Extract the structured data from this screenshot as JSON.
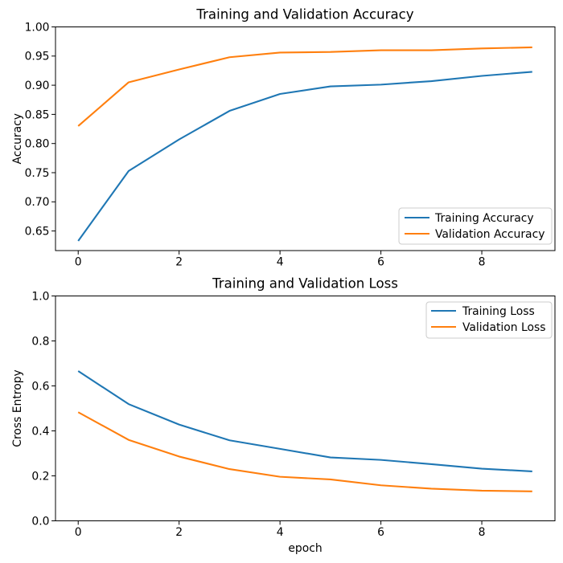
{
  "figure": {
    "background": "#ffffff",
    "axis_color": "#000000",
    "legend_border_color": "#cccccc"
  },
  "chart_data": [
    {
      "type": "line",
      "title": "Training and Validation Accuracy",
      "xlabel": "",
      "ylabel": "Accuracy",
      "x": [
        0,
        1,
        2,
        3,
        4,
        5,
        6,
        7,
        8,
        9
      ],
      "series": [
        {
          "name": "Training Accuracy",
          "color": "#1f77b4",
          "values": [
            0.633,
            0.753,
            0.807,
            0.856,
            0.885,
            0.898,
            0.901,
            0.907,
            0.916,
            0.923
          ]
        },
        {
          "name": "Validation Accuracy",
          "color": "#ff7f0e",
          "values": [
            0.83,
            0.905,
            0.927,
            0.948,
            0.956,
            0.957,
            0.96,
            0.96,
            0.963,
            0.965
          ]
        }
      ],
      "xlim": [
        -0.45,
        9.45
      ],
      "ylim": [
        0.6164,
        1.0
      ],
      "xticks": [
        0,
        2,
        4,
        6,
        8
      ],
      "xtick_labels": [
        "0",
        "2",
        "4",
        "6",
        "8"
      ],
      "yticks": [
        0.65,
        0.7,
        0.75,
        0.8,
        0.85,
        0.9,
        0.95,
        1.0
      ],
      "ytick_labels": [
        "0.65",
        "0.70",
        "0.75",
        "0.80",
        "0.85",
        "0.90",
        "0.95",
        "1.00"
      ],
      "grid": false,
      "legend_position": "lower right"
    },
    {
      "type": "line",
      "title": "Training and Validation Loss",
      "xlabel": "epoch",
      "ylabel": "Cross Entropy",
      "x": [
        0,
        1,
        2,
        3,
        4,
        5,
        6,
        7,
        8,
        9
      ],
      "series": [
        {
          "name": "Training Loss",
          "color": "#1f77b4",
          "values": [
            0.666,
            0.519,
            0.428,
            0.358,
            0.32,
            0.282,
            0.271,
            0.252,
            0.232,
            0.22
          ]
        },
        {
          "name": "Validation Loss",
          "color": "#ff7f0e",
          "values": [
            0.483,
            0.36,
            0.286,
            0.23,
            0.196,
            0.184,
            0.158,
            0.143,
            0.134,
            0.131
          ]
        }
      ],
      "xlim": [
        -0.45,
        9.45
      ],
      "ylim": [
        0.0,
        1.0
      ],
      "xticks": [
        0,
        2,
        4,
        6,
        8
      ],
      "xtick_labels": [
        "0",
        "2",
        "4",
        "6",
        "8"
      ],
      "yticks": [
        0.0,
        0.2,
        0.4,
        0.6,
        0.8,
        1.0
      ],
      "ytick_labels": [
        "0.0",
        "0.2",
        "0.4",
        "0.6",
        "0.8",
        "1.0"
      ],
      "grid": false,
      "legend_position": "upper right"
    }
  ]
}
